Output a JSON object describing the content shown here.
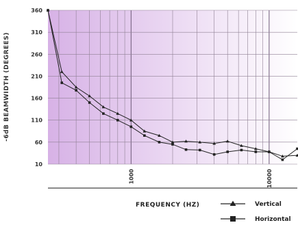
{
  "chart_data": {
    "type": "line",
    "xlabel": "FREQUENCY (HZ)",
    "ylabel": "-6dB BEAMWIDTH (DEGREES)",
    "x_scale": "log",
    "xlim": [
      250,
      16000
    ],
    "ylim": [
      10,
      360
    ],
    "y_ticks": [
      10,
      60,
      110,
      160,
      210,
      260,
      310,
      360
    ],
    "x_tick_labels": [
      {
        "value": 1000,
        "label": "1000"
      },
      {
        "value": 10000,
        "label": "10000"
      }
    ],
    "grid": true,
    "background_gradient": [
      "#d7b2e6",
      "#ffffff"
    ],
    "legend_position": "bottom-right",
    "series": [
      {
        "name": "Vertical",
        "marker": "triangle",
        "x": [
          250,
          315,
          400,
          500,
          630,
          800,
          1000,
          1250,
          1600,
          2000,
          2500,
          3150,
          4000,
          5000,
          6300,
          8000,
          10000,
          12500,
          16000
        ],
        "y": [
          360,
          220,
          185,
          165,
          140,
          125,
          110,
          85,
          75,
          60,
          62,
          60,
          57,
          62,
          52,
          45,
          38,
          28,
          30
        ]
      },
      {
        "name": "Horizontal",
        "marker": "square",
        "x": [
          250,
          315,
          400,
          500,
          630,
          800,
          1000,
          1250,
          1600,
          2000,
          2500,
          3150,
          4000,
          5000,
          6300,
          8000,
          10000,
          12500,
          16000
        ],
        "y": [
          360,
          195,
          178,
          150,
          125,
          110,
          95,
          75,
          60,
          55,
          43,
          42,
          32,
          38,
          42,
          38,
          38,
          20,
          45
        ]
      }
    ]
  }
}
